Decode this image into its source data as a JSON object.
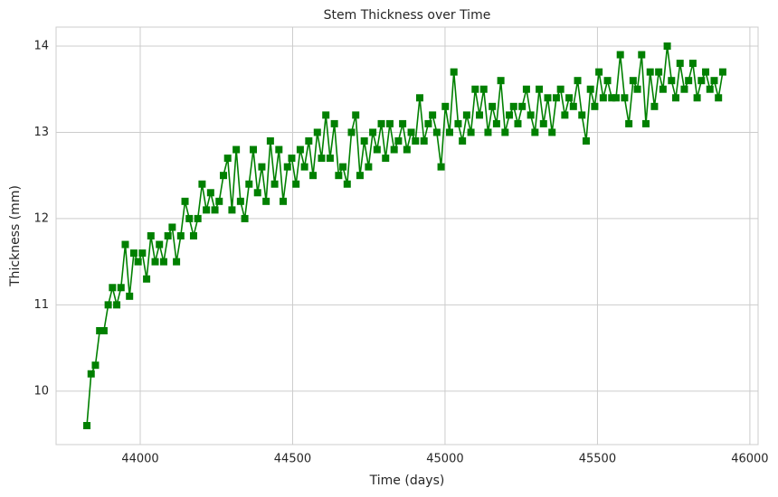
{
  "chart_data": {
    "type": "line",
    "title": "Stem Thickness over Time",
    "x_label": "Time (days)",
    "y_label": "Thickness (mm)",
    "x": [
      43825,
      43839,
      43853,
      43867,
      43881,
      43895,
      43909,
      43923,
      43937,
      43951,
      43965,
      43979,
      43993,
      44007,
      44021,
      44035,
      44049,
      44063,
      44077,
      44091,
      44105,
      44119,
      44133,
      44147,
      44161,
      44175,
      44189,
      44203,
      44217,
      44231,
      44245,
      44259,
      44273,
      44287,
      44301,
      44315,
      44329,
      44343,
      44357,
      44371,
      44385,
      44399,
      44413,
      44427,
      44441,
      44455,
      44469,
      44483,
      44497,
      44511,
      44525,
      44539,
      44553,
      44567,
      44581,
      44595,
      44609,
      44623,
      44637,
      44651,
      44665,
      44679,
      44693,
      44707,
      44721,
      44735,
      44749,
      44763,
      44777,
      44791,
      44805,
      44819,
      44833,
      44847,
      44861,
      44875,
      44889,
      44903,
      44917,
      44931,
      44945,
      44959,
      44973,
      44987,
      45001,
      45015,
      45029,
      45043,
      45057,
      45071,
      45085,
      45099,
      45113,
      45127,
      45141,
      45155,
      45169,
      45183,
      45197,
      45211,
      45225,
      45239,
      45253,
      45267,
      45281,
      45295,
      45309,
      45323,
      45337,
      45351,
      45365,
      45379,
      45393,
      45407,
      45421,
      45435,
      45449,
      45463,
      45477,
      45491,
      45505,
      45519,
      45533,
      45547,
      45561,
      45575,
      45589,
      45603,
      45617,
      45631,
      45645,
      45659,
      45673,
      45687,
      45701,
      45715,
      45729,
      45743,
      45757,
      45771,
      45785,
      45799,
      45813,
      45827,
      45841,
      45855,
      45869,
      45883,
      45897,
      45911
    ],
    "series": [
      {
        "color": "#008000",
        "marker": "square",
        "values": [
          9.6,
          10.2,
          10.3,
          10.7,
          10.7,
          11.0,
          11.2,
          11.0,
          11.2,
          11.7,
          11.1,
          11.6,
          11.5,
          11.6,
          11.3,
          11.8,
          11.5,
          11.7,
          11.5,
          11.8,
          11.9,
          11.5,
          11.8,
          12.2,
          12.0,
          11.8,
          12.0,
          12.4,
          12.1,
          12.3,
          12.1,
          12.2,
          12.5,
          12.7,
          12.1,
          12.8,
          12.2,
          12.0,
          12.4,
          12.8,
          12.3,
          12.6,
          12.2,
          12.9,
          12.4,
          12.8,
          12.2,
          12.6,
          12.7,
          12.4,
          12.8,
          12.6,
          12.9,
          12.5,
          13.0,
          12.7,
          13.2,
          12.7,
          13.1,
          12.5,
          12.6,
          12.4,
          13.0,
          13.2,
          12.5,
          12.9,
          12.6,
          13.0,
          12.8,
          13.1,
          12.7,
          13.1,
          12.8,
          12.9,
          13.1,
          12.8,
          13.0,
          12.9,
          13.4,
          12.9,
          13.1,
          13.2,
          13.0,
          12.6,
          13.3,
          13.0,
          13.7,
          13.1,
          12.9,
          13.2,
          13.0,
          13.5,
          13.2,
          13.5,
          13.0,
          13.3,
          13.1,
          13.6,
          13.0,
          13.2,
          13.3,
          13.1,
          13.3,
          13.5,
          13.2,
          13.0,
          13.5,
          13.1,
          13.4,
          13.0,
          13.4,
          13.5,
          13.2,
          13.4,
          13.3,
          13.6,
          13.2,
          12.9,
          13.5,
          13.3,
          13.7,
          13.4,
          13.6,
          13.4,
          13.4,
          13.9,
          13.4,
          13.1,
          13.6,
          13.5,
          13.9,
          13.1,
          13.7,
          13.3,
          13.7,
          13.5,
          14.0,
          13.6,
          13.4,
          13.8,
          13.5,
          13.6,
          13.8,
          13.4,
          13.6,
          13.7,
          13.5,
          13.6,
          13.4,
          13.7
        ]
      }
    ],
    "xlim": [
      43724,
      46027
    ],
    "ylim": [
      9.38,
      14.22
    ],
    "xticks": [
      44000,
      44500,
      45000,
      45500,
      46000
    ],
    "yticks": [
      10,
      11,
      12,
      13,
      14
    ],
    "grid": true
  }
}
